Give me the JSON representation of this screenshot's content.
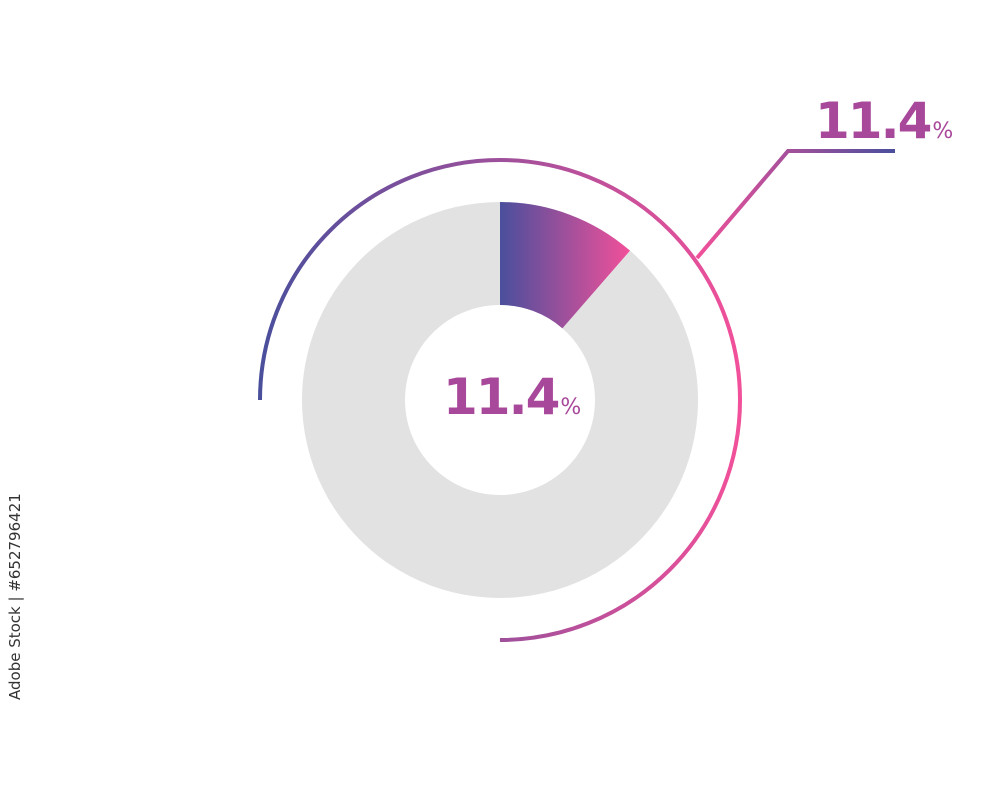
{
  "chart_data": {
    "type": "pie",
    "style": "donut",
    "values": [
      11.4,
      88.6
    ],
    "center_label": {
      "value": "11.4",
      "unit": "%"
    },
    "callout_label": {
      "value": "11.4",
      "unit": "%"
    },
    "colors": {
      "highlight_start": "#4a4f9c",
      "highlight_end": "#f2509a",
      "remainder": "#e2e2e2",
      "label": "#a8489a"
    }
  },
  "watermark": "Adobe Stock | #652796421"
}
